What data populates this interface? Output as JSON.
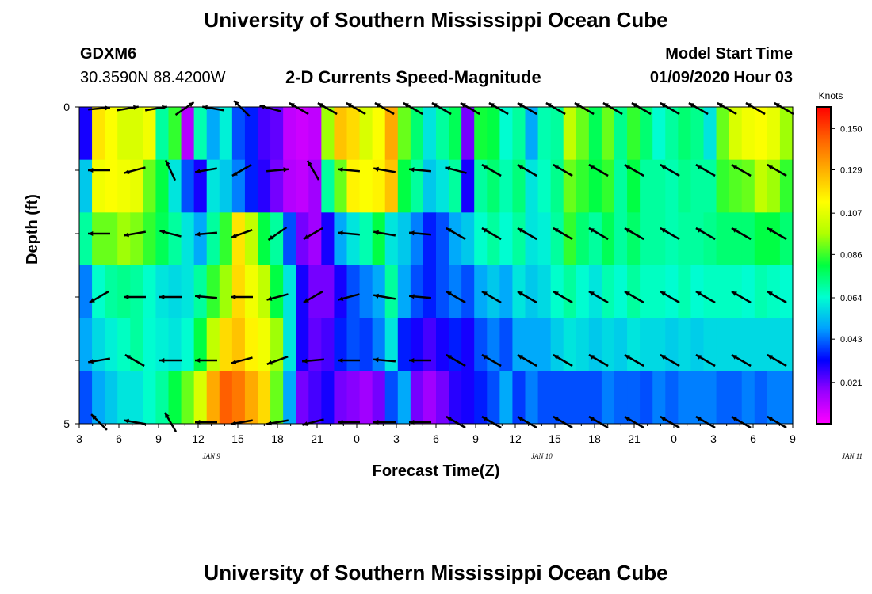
{
  "header": {
    "title": "University of Southern Mississippi Ocean Cube",
    "station_id": "GDXM6",
    "station_coords": "30.3590N 88.4200W",
    "subtitle": "2-D Currents Speed-Magnitude",
    "model_start_label": "Model Start Time",
    "model_start_value": "01/09/2020 Hour 03"
  },
  "footer": {
    "title": "University of Southern Mississippi Ocean Cube"
  },
  "chart_data": {
    "type": "heatmap",
    "title": "2-D Currents Speed-Magnitude",
    "xlabel": "Forecast Time(Z)",
    "ylabel": "Depth (ft)",
    "x_tick_labels": [
      "3",
      "6",
      "9",
      "12",
      "15",
      "18",
      "21",
      "0",
      "3",
      "6",
      "9",
      "12",
      "15",
      "18",
      "21",
      "0",
      "3",
      "6",
      "9"
    ],
    "date_labels": [
      {
        "label": "JAN  9",
        "at_hour": 13
      },
      {
        "label": "JAN  10",
        "at_hour": 38
      },
      {
        "label": "JAN  11",
        "at_hour": 61.5
      }
    ],
    "x_range_hours": [
      0,
      54
    ],
    "y_range_ft": [
      0,
      5
    ],
    "y_tick_labels": [
      {
        "depth": 0,
        "label": "0"
      },
      {
        "depth": 1,
        "label": ""
      },
      {
        "depth": 2,
        "label": ""
      },
      {
        "depth": 3,
        "label": ""
      },
      {
        "depth": 4,
        "label": ""
      },
      {
        "depth": 5,
        "label": "5"
      }
    ],
    "colorbar": {
      "unit": "Knots",
      "min": 0.0,
      "max": 0.161,
      "ticks": [
        0.15,
        0.129,
        0.107,
        0.086,
        0.064,
        0.043,
        0.021
      ],
      "tick_labels": [
        "0.150",
        "0.129",
        "0.107",
        "0.086",
        "0.064",
        "0.043",
        "0.021"
      ],
      "colors": [
        "#ff00ff",
        "#9a00ff",
        "#0000ff",
        "#00a0ff",
        "#00ffd0",
        "#00ff40",
        "#b0ff00",
        "#ffff00",
        "#ffb000",
        "#ff6000",
        "#ff0000"
      ]
    },
    "speed_rows_knots": [
      [
        0.03,
        0.118,
        0.112,
        0.105,
        0.105,
        0.11,
        0.07,
        0.085,
        0.012,
        0.068,
        0.05,
        0.062,
        0.04,
        0.035,
        0.025,
        0.022,
        0.01,
        0.008,
        0.01,
        0.095,
        0.125,
        0.12,
        0.105,
        0.112,
        0.13,
        0.09,
        0.075,
        0.06,
        0.07,
        0.078,
        0.02,
        0.082,
        0.08,
        0.064,
        0.07,
        0.05,
        0.068,
        0.07,
        0.1,
        0.09,
        0.078,
        0.09,
        0.072,
        0.085,
        0.075,
        0.064,
        0.07,
        0.075,
        0.072,
        0.06,
        0.09,
        0.105,
        0.11,
        0.112,
        0.108,
        0.095
      ],
      [
        0.055,
        0.11,
        0.112,
        0.11,
        0.108,
        0.09,
        0.08,
        0.06,
        0.04,
        0.03,
        0.06,
        0.055,
        0.045,
        0.035,
        0.028,
        0.02,
        0.012,
        0.01,
        0.015,
        0.07,
        0.09,
        0.115,
        0.112,
        0.115,
        0.125,
        0.08,
        0.07,
        0.055,
        0.06,
        0.07,
        0.03,
        0.07,
        0.075,
        0.068,
        0.074,
        0.06,
        0.066,
        0.072,
        0.09,
        0.085,
        0.08,
        0.085,
        0.07,
        0.08,
        0.07,
        0.07,
        0.068,
        0.072,
        0.07,
        0.07,
        0.085,
        0.088,
        0.09,
        0.1,
        0.095,
        0.085
      ],
      [
        0.07,
        0.09,
        0.09,
        0.095,
        0.092,
        0.085,
        0.078,
        0.07,
        0.06,
        0.05,
        0.07,
        0.085,
        0.118,
        0.1,
        0.08,
        0.07,
        0.04,
        0.02,
        0.015,
        0.03,
        0.05,
        0.06,
        0.068,
        0.08,
        0.06,
        0.055,
        0.045,
        0.035,
        0.04,
        0.05,
        0.055,
        0.065,
        0.07,
        0.064,
        0.07,
        0.06,
        0.062,
        0.07,
        0.085,
        0.075,
        0.07,
        0.078,
        0.07,
        0.076,
        0.07,
        0.07,
        0.068,
        0.07,
        0.07,
        0.072,
        0.075,
        0.075,
        0.075,
        0.08,
        0.08,
        0.075
      ],
      [
        0.045,
        0.065,
        0.07,
        0.072,
        0.07,
        0.065,
        0.06,
        0.058,
        0.06,
        0.07,
        0.085,
        0.095,
        0.12,
        0.11,
        0.1,
        0.08,
        0.06,
        0.03,
        0.02,
        0.02,
        0.03,
        0.04,
        0.045,
        0.05,
        0.07,
        0.05,
        0.04,
        0.035,
        0.04,
        0.045,
        0.04,
        0.05,
        0.055,
        0.05,
        0.06,
        0.055,
        0.058,
        0.065,
        0.07,
        0.064,
        0.06,
        0.068,
        0.064,
        0.07,
        0.066,
        0.066,
        0.064,
        0.068,
        0.064,
        0.066,
        0.066,
        0.066,
        0.064,
        0.068,
        0.066,
        0.064
      ],
      [
        0.05,
        0.058,
        0.062,
        0.066,
        0.07,
        0.064,
        0.062,
        0.06,
        0.064,
        0.08,
        0.1,
        0.12,
        0.125,
        0.115,
        0.11,
        0.095,
        0.06,
        0.03,
        0.022,
        0.025,
        0.035,
        0.04,
        0.038,
        0.045,
        0.06,
        0.035,
        0.03,
        0.025,
        0.03,
        0.035,
        0.03,
        0.04,
        0.045,
        0.04,
        0.05,
        0.05,
        0.05,
        0.056,
        0.06,
        0.058,
        0.055,
        0.058,
        0.056,
        0.06,
        0.058,
        0.058,
        0.056,
        0.058,
        0.056,
        0.058,
        0.058,
        0.058,
        0.058,
        0.058,
        0.058,
        0.058
      ],
      [
        0.04,
        0.05,
        0.055,
        0.06,
        0.06,
        0.065,
        0.07,
        0.08,
        0.09,
        0.105,
        0.13,
        0.145,
        0.14,
        0.13,
        0.12,
        0.09,
        0.05,
        0.02,
        0.025,
        0.03,
        0.02,
        0.018,
        0.015,
        0.02,
        0.04,
        0.05,
        0.02,
        0.015,
        0.02,
        0.028,
        0.03,
        0.035,
        0.04,
        0.05,
        0.038,
        0.045,
        0.04,
        0.04,
        0.04,
        0.04,
        0.04,
        0.045,
        0.042,
        0.042,
        0.04,
        0.045,
        0.042,
        0.045,
        0.045,
        0.045,
        0.042,
        0.042,
        0.045,
        0.042,
        0.045,
        0.045
      ]
    ],
    "arrow_rows": [
      {
        "depth": 0,
        "dirs_deg": [
          5,
          10,
          10,
          35,
          170,
          135,
          165,
          150,
          150,
          150,
          150,
          150,
          150,
          150,
          150,
          150,
          150,
          150,
          150,
          150,
          150,
          150,
          150,
          150,
          150
        ]
      },
      {
        "depth": 1,
        "dirs_deg": [
          180,
          195,
          115,
          190,
          210,
          5,
          120,
          175,
          170,
          175,
          165,
          150,
          150,
          150,
          150,
          150,
          150,
          150,
          150,
          150
        ]
      },
      {
        "depth": 2,
        "dirs_deg": [
          180,
          190,
          165,
          185,
          200,
          215,
          210,
          175,
          170,
          175,
          150,
          150,
          150,
          150,
          150,
          150,
          150,
          150,
          150,
          150
        ]
      },
      {
        "depth": 3,
        "dirs_deg": [
          210,
          180,
          180,
          175,
          180,
          195,
          210,
          195,
          170,
          175,
          150,
          150,
          150,
          150,
          150,
          150,
          150,
          150,
          150,
          150
        ]
      },
      {
        "depth": 4,
        "dirs_deg": [
          190,
          150,
          180,
          180,
          195,
          200,
          185,
          180,
          175,
          180,
          150,
          150,
          150,
          150,
          150,
          150,
          150,
          150,
          150,
          150
        ]
      },
      {
        "depth": 5,
        "dirs_deg": [
          135,
          170,
          120,
          180,
          190,
          190,
          195,
          180,
          180,
          180,
          150,
          150,
          150,
          150,
          150,
          150,
          150,
          150,
          150,
          150
        ]
      }
    ]
  }
}
